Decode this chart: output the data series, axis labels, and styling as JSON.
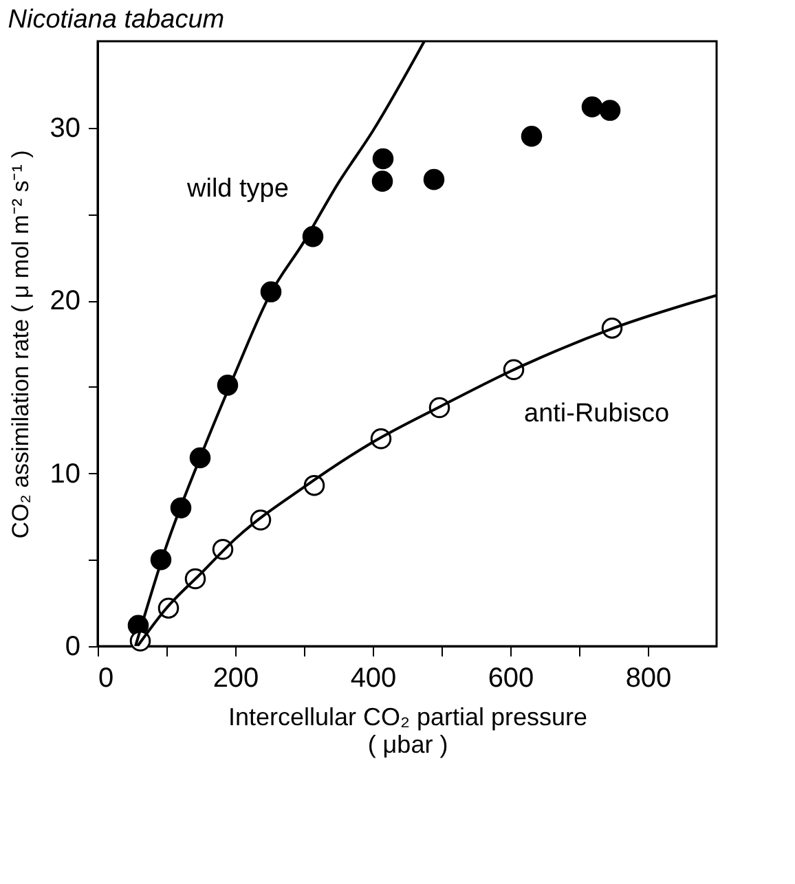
{
  "chart_data": {
    "type": "scatter",
    "title": "Nicotiana tabacum",
    "xlabel": "Intercellular CO₂ partial pressure\n( μbar )",
    "ylabel": "CO₂ assimilation rate ( μ mol m⁻² s⁻¹ )",
    "xlim": [
      0,
      900
    ],
    "ylim": [
      0,
      35
    ],
    "xticks": [
      0,
      {
        "value": 100,
        "label": null
      },
      200,
      {
        "value": 300,
        "label": null
      },
      400,
      {
        "value": 500,
        "label": null
      },
      600,
      {
        "value": 700,
        "label": null
      },
      800
    ],
    "yticks": [
      0,
      {
        "value": 5,
        "label": null
      },
      10,
      {
        "value": 15,
        "label": null
      },
      20,
      {
        "value": 25,
        "label": null
      },
      30
    ],
    "grid": false,
    "series": [
      {
        "name": "wild type",
        "color": "#000000",
        "marker": "circle",
        "x": [
          59,
          92,
          121,
          149,
          189,
          252,
          313,
          415,
          414,
          489,
          631,
          719,
          745
        ],
        "values": [
          1.2,
          5.0,
          8.0,
          10.9,
          15.1,
          20.5,
          23.7,
          28.2,
          26.9,
          27.0,
          29.5,
          31.2,
          31.0
        ]
      },
      {
        "name": "anti-Rubisco",
        "color": "#ffffff",
        "marker": "circle",
        "x": [
          62,
          103,
          142,
          182,
          237,
          315,
          412,
          497,
          605,
          748
        ],
        "values": [
          0.3,
          2.2,
          3.9,
          5.6,
          7.3,
          9.3,
          12.0,
          13.8,
          16.0,
          18.4
        ]
      },
      {
        "type": "line",
        "color": "#000000",
        "marker": "none",
        "line_style": "solid",
        "x": [
          55,
          100,
          150,
          200,
          250,
          300,
          350,
          400,
          475
        ],
        "values": [
          0,
          5.8,
          11,
          15.8,
          20.3,
          23.4,
          26.8,
          29.8,
          35
        ]
      },
      {
        "type": "line",
        "color": "#000000",
        "marker": "none",
        "line_style": "solid",
        "x": [
          58,
          100,
          150,
          200,
          300,
          400,
          500,
          600,
          750,
          900
        ],
        "values": [
          0,
          2.2,
          4.2,
          6.2,
          9.2,
          11.8,
          13.9,
          15.9,
          18.4,
          20.3
        ]
      }
    ]
  }
}
